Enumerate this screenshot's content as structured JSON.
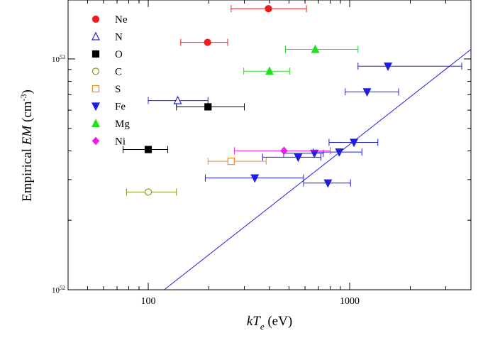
{
  "chart_data": {
    "type": "scatter",
    "xscale": "log",
    "yscale": "log",
    "xlim": [
      40,
      4000
    ],
    "ylim": [
      1e+52,
      1.8e+53
    ],
    "xlabel": {
      "main": "kT",
      "sub": "e",
      "unit": " (eV)"
    },
    "ylabel": {
      "pre": "Empirical ",
      "ital": "EM",
      "mid": " (cm",
      "sup": "-3",
      "post": ")"
    },
    "xticks": [
      100,
      1000
    ],
    "xtick_labels": [
      "100",
      "1000"
    ],
    "yticks": [
      1e+52,
      1e+53
    ],
    "ytick_labels": [
      {
        "base": "10",
        "exp": "52"
      },
      {
        "base": "10",
        "exp": "53"
      }
    ],
    "legend": {
      "placement": "top-left"
    },
    "fit_line": {
      "color": "#1f1fe0",
      "points": [
        [
          120,
          1e+52
        ],
        [
          4000,
          1.1e+53
        ]
      ]
    },
    "series": [
      {
        "name": "Ne",
        "marker": "circle",
        "filled": true,
        "color": "#ee1c1c",
        "points": [
          [
            395,
            1.65e+53,
            258,
            610
          ],
          [
            197,
            1.18e+53,
            145,
            248
          ]
        ]
      },
      {
        "name": "N",
        "marker": "triangle-up",
        "filled": false,
        "color": "#1f1fe0",
        "points": [
          [
            140,
            6.6e+52,
            100,
            198
          ]
        ]
      },
      {
        "name": "O",
        "marker": "square",
        "filled": true,
        "color": "#000000",
        "points": [
          [
            198,
            6.2e+52,
            138,
            300
          ],
          [
            100,
            4.05e+52,
            75,
            125
          ]
        ]
      },
      {
        "name": "C",
        "marker": "circle",
        "filled": false,
        "color": "#7a9a1e",
        "points": [
          [
            100,
            2.65e+52,
            78,
            138
          ]
        ]
      },
      {
        "name": "S",
        "marker": "square",
        "filled": false,
        "color": "#f28a1e",
        "points": [
          [
            258,
            3.6e+52,
            198,
            385
          ]
        ]
      },
      {
        "name": "Fe",
        "marker": "triangle-down",
        "filled": true,
        "color": "#1f1fe0",
        "points": [
          [
            1550,
            9.3e+52,
            1100,
            3600
          ],
          [
            1220,
            7.2e+52,
            950,
            1750
          ],
          [
            1050,
            4.35e+52,
            790,
            1380
          ],
          [
            888,
            3.95e+52,
            660,
            1150
          ],
          [
            668,
            3.9e+52,
            470,
            740
          ],
          [
            555,
            3.75e+52,
            370,
            720
          ],
          [
            338,
            3.05e+52,
            192,
            590
          ],
          [
            780,
            2.9e+52,
            590,
            1010
          ]
        ]
      },
      {
        "name": "Mg",
        "marker": "triangle-up",
        "filled": true,
        "color": "#22e01e",
        "points": [
          [
            675,
            1.1e+53,
            480,
            1100
          ],
          [
            400,
            8.85e+52,
            298,
            505
          ]
        ]
      },
      {
        "name": "Ni",
        "marker": "diamond",
        "filled": true,
        "color": "#ee1ee9",
        "points": [
          [
            472,
            4e+52,
            268,
            800
          ]
        ]
      }
    ]
  }
}
